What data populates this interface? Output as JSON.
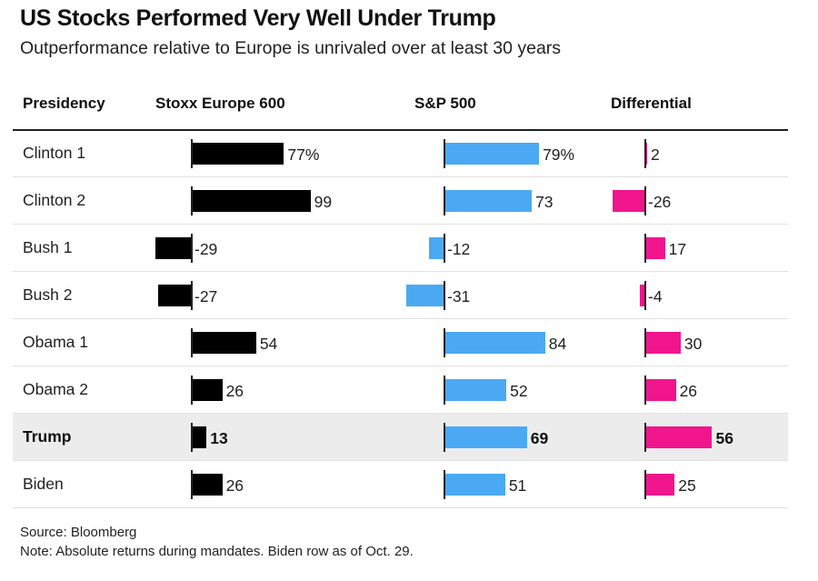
{
  "chart_data": {
    "type": "bar",
    "title": "US Stocks Performed Very Well Under Trump",
    "subtitle": "Outperformance relative to Europe is unrivaled over at least 30 years",
    "columns": [
      "Presidency",
      "Stoxx Europe 600",
      "S&P 500",
      "Differential"
    ],
    "categories": [
      "Clinton 1",
      "Clinton 2",
      "Bush 1",
      "Bush 2",
      "Obama 1",
      "Obama 2",
      "Trump",
      "Biden"
    ],
    "highlight": "Trump",
    "series": [
      {
        "name": "Stoxx Europe 600",
        "color": "#000000",
        "values": [
          77,
          99,
          -29,
          -27,
          54,
          26,
          13,
          26
        ],
        "labels": [
          "77%",
          "99",
          "-29",
          "-27",
          "54",
          "26",
          "13",
          "26"
        ]
      },
      {
        "name": "S&P 500",
        "color": "#4aa9f2",
        "values": [
          79,
          73,
          -12,
          -31,
          84,
          52,
          69,
          51
        ],
        "labels": [
          "79%",
          "73",
          "-12",
          "-31",
          "84",
          "52",
          "69",
          "51"
        ]
      },
      {
        "name": "Differential",
        "color": "#f0158c",
        "values": [
          2,
          -26,
          17,
          -4,
          30,
          26,
          56,
          25
        ],
        "labels": [
          "2",
          "-26",
          "17",
          "-4",
          "30",
          "26",
          "56",
          "25"
        ]
      }
    ],
    "source": "Source: Bloomberg",
    "note": "Note: Absolute returns during mandates. Biden row as of Oct. 29."
  }
}
